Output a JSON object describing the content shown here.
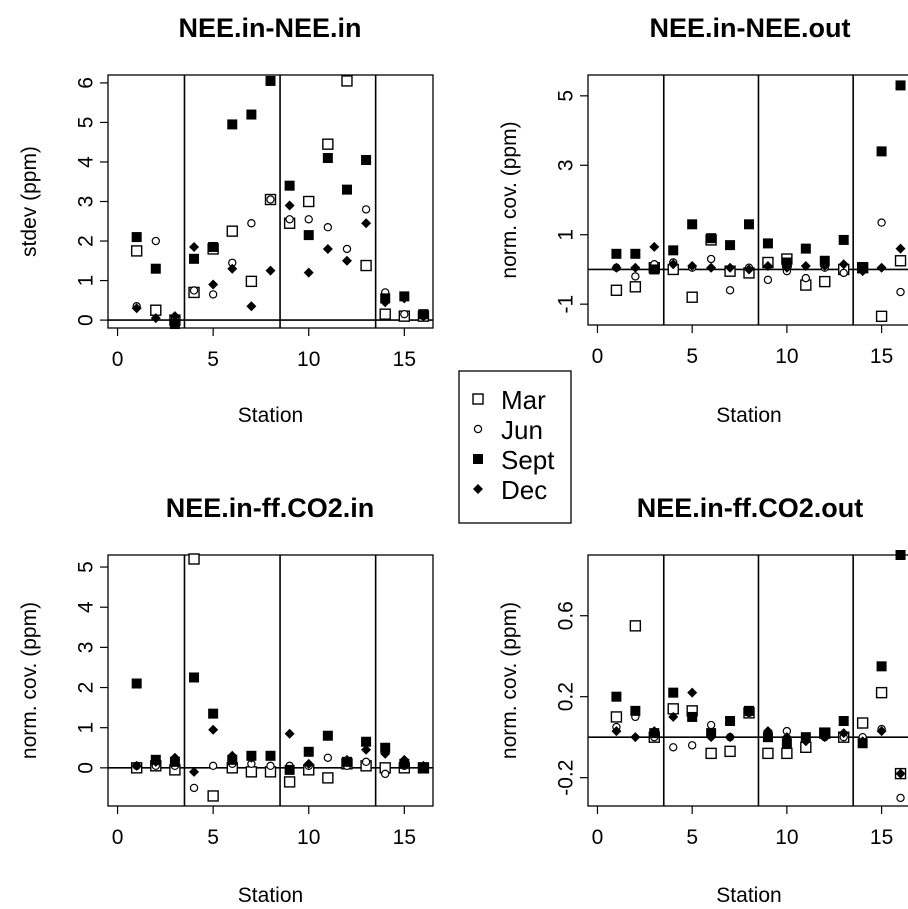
{
  "legend": {
    "entries": [
      {
        "label": "Mar",
        "marker": "open-square"
      },
      {
        "label": "Jun",
        "marker": "open-circle"
      },
      {
        "label": "Sept",
        "marker": "filled-square"
      },
      {
        "label": "Dec",
        "marker": "filled-diamond"
      }
    ]
  },
  "chart_data": [
    {
      "type": "scatter",
      "title": "NEE.in-NEE.in",
      "xlabel": "Station",
      "ylabel": "stdev (ppm)",
      "xlim": [
        -0.5,
        16.5
      ],
      "ylim": [
        -0.2,
        6.2
      ],
      "xticks": [
        0,
        5,
        10,
        15
      ],
      "yticks": [
        0,
        1,
        2,
        3,
        4,
        5,
        6
      ],
      "hline": 0,
      "vlines": [
        3.5,
        8.5,
        13.5
      ],
      "grid": false,
      "series": [
        {
          "name": "Mar",
          "marker": "open-square",
          "x": [
            1,
            2,
            3,
            4,
            5,
            6,
            7,
            8,
            9,
            10,
            11,
            12,
            13,
            14,
            15,
            16
          ],
          "y": [
            1.75,
            0.25,
            0.0,
            0.7,
            1.8,
            2.25,
            0.98,
            3.05,
            2.45,
            3.0,
            4.45,
            6.05,
            1.38,
            0.15,
            0.1,
            0.1
          ]
        },
        {
          "name": "Jun",
          "marker": "open-circle",
          "x": [
            1,
            2,
            3,
            4,
            5,
            6,
            7,
            8,
            9,
            10,
            11,
            12,
            13,
            14,
            15,
            16
          ],
          "y": [
            0.35,
            2.0,
            0.05,
            0.75,
            0.65,
            1.45,
            2.45,
            3.05,
            2.55,
            2.55,
            2.35,
            1.8,
            2.8,
            0.7,
            0.15,
            0.1
          ]
        },
        {
          "name": "Sept",
          "marker": "filled-square",
          "x": [
            1,
            2,
            3,
            4,
            5,
            6,
            7,
            8,
            9,
            10,
            11,
            12,
            13,
            14,
            15,
            16
          ],
          "y": [
            2.1,
            1.3,
            -0.1,
            1.55,
            1.85,
            4.95,
            5.2,
            6.05,
            3.4,
            2.15,
            4.1,
            3.3,
            4.05,
            0.55,
            0.6,
            0.15
          ]
        },
        {
          "name": "Dec",
          "marker": "filled-diamond",
          "x": [
            1,
            2,
            3,
            4,
            5,
            6,
            7,
            8,
            9,
            10,
            11,
            12,
            13,
            14,
            15,
            16
          ],
          "y": [
            0.3,
            0.05,
            0.1,
            1.85,
            0.9,
            1.3,
            0.35,
            1.25,
            2.9,
            1.2,
            1.8,
            1.5,
            2.45,
            0.45,
            0.55,
            0.1
          ]
        }
      ]
    },
    {
      "type": "scatter",
      "title": "NEE.in-NEE.out",
      "xlabel": "Station",
      "ylabel": "norm. cov. (ppm)",
      "xlim": [
        -0.5,
        16.5
      ],
      "ylim": [
        -1.6,
        5.6
      ],
      "xticks": [
        0,
        5,
        10,
        15
      ],
      "yticks": [
        -1,
        1,
        3,
        5
      ],
      "hline": 0,
      "vlines": [
        3.5,
        8.5,
        13.5
      ],
      "grid": false,
      "series": [
        {
          "name": "Mar",
          "marker": "open-square",
          "x": [
            1,
            2,
            3,
            4,
            5,
            6,
            7,
            8,
            9,
            10,
            11,
            12,
            13,
            14,
            15,
            16
          ],
          "y": [
            -0.6,
            -0.5,
            0.05,
            0.0,
            -0.8,
            0.85,
            -0.05,
            -0.1,
            0.2,
            0.3,
            -0.45,
            -0.35,
            0.0,
            0.05,
            -1.35,
            0.25
          ]
        },
        {
          "name": "Jun",
          "marker": "open-circle",
          "x": [
            1,
            2,
            3,
            4,
            5,
            6,
            7,
            8,
            9,
            10,
            11,
            12,
            13,
            14,
            15,
            16
          ],
          "y": [
            0.05,
            -0.2,
            0.15,
            0.2,
            0.05,
            0.3,
            -0.6,
            0.05,
            -0.3,
            -0.05,
            -0.25,
            0.05,
            -0.1,
            0.0,
            1.35,
            -0.65
          ]
        },
        {
          "name": "Sept",
          "marker": "filled-square",
          "x": [
            1,
            2,
            3,
            4,
            5,
            6,
            7,
            8,
            9,
            10,
            11,
            12,
            13,
            14,
            15,
            16
          ],
          "y": [
            0.45,
            0.45,
            0.0,
            0.55,
            1.3,
            0.9,
            0.7,
            1.3,
            0.75,
            0.2,
            0.6,
            0.25,
            0.85,
            0.05,
            3.4,
            5.3
          ]
        },
        {
          "name": "Dec",
          "marker": "filled-diamond",
          "x": [
            1,
            2,
            3,
            4,
            5,
            6,
            7,
            8,
            9,
            10,
            11,
            12,
            13,
            14,
            15,
            16
          ],
          "y": [
            0.05,
            0.05,
            0.65,
            0.15,
            0.1,
            0.05,
            0.05,
            0.0,
            0.1,
            0.05,
            0.1,
            0.1,
            0.15,
            -0.05,
            0.05,
            0.6
          ]
        }
      ]
    },
    {
      "type": "scatter",
      "title": "NEE.in-ff.CO2.in",
      "xlabel": "Station",
      "ylabel": "norm. cov. (ppm)",
      "xlim": [
        -0.5,
        16.5
      ],
      "ylim": [
        -0.95,
        5.3
      ],
      "xticks": [
        0,
        5,
        10,
        15
      ],
      "yticks": [
        0,
        1,
        2,
        3,
        4,
        5
      ],
      "hline": 0,
      "vlines": [
        3.5,
        8.5,
        13.5
      ],
      "grid": false,
      "series": [
        {
          "name": "Mar",
          "marker": "open-square",
          "x": [
            1,
            2,
            3,
            4,
            5,
            6,
            7,
            8,
            9,
            10,
            11,
            12,
            13,
            14,
            15,
            16
          ],
          "y": [
            0.0,
            0.05,
            -0.05,
            5.2,
            -0.7,
            0.0,
            -0.1,
            -0.1,
            -0.35,
            -0.05,
            -0.25,
            0.1,
            0.05,
            0.0,
            0.0,
            0.0
          ]
        },
        {
          "name": "Jun",
          "marker": "open-circle",
          "x": [
            1,
            2,
            3,
            4,
            5,
            6,
            7,
            8,
            9,
            10,
            11,
            12,
            13,
            14,
            15,
            16
          ],
          "y": [
            0.05,
            0.05,
            0.05,
            -0.5,
            0.05,
            0.1,
            0.1,
            0.05,
            0.05,
            0.05,
            0.25,
            0.05,
            0.15,
            -0.15,
            0.05,
            0.0
          ]
        },
        {
          "name": "Sept",
          "marker": "filled-square",
          "x": [
            1,
            2,
            3,
            4,
            5,
            6,
            7,
            8,
            9,
            10,
            11,
            12,
            13,
            14,
            15,
            16
          ],
          "y": [
            2.1,
            0.2,
            0.15,
            2.25,
            1.35,
            0.2,
            0.3,
            0.3,
            -0.05,
            0.4,
            0.8,
            0.15,
            0.65,
            0.5,
            0.1,
            0.0
          ]
        },
        {
          "name": "Dec",
          "marker": "filled-diamond",
          "x": [
            1,
            2,
            3,
            4,
            5,
            6,
            7,
            8,
            9,
            10,
            11,
            12,
            13,
            14,
            15,
            16
          ],
          "y": [
            0.05,
            0.15,
            0.25,
            -0.1,
            0.95,
            0.3,
            0.25,
            0.3,
            0.85,
            0.1,
            0.8,
            0.2,
            0.45,
            0.35,
            0.2,
            0.05
          ]
        }
      ]
    },
    {
      "type": "scatter",
      "title": "NEE.in-ff.CO2.out",
      "xlabel": "Station",
      "ylabel": "norm. cov. (ppm)",
      "xlim": [
        -0.5,
        16.5
      ],
      "ylim": [
        -0.34,
        0.9
      ],
      "xticks": [
        0,
        5,
        10,
        15
      ],
      "yticks": [
        -0.2,
        0.2,
        0.6
      ],
      "hline": 0,
      "vlines": [
        3.5,
        8.5,
        13.5
      ],
      "grid": false,
      "series": [
        {
          "name": "Mar",
          "marker": "open-square",
          "x": [
            1,
            2,
            3,
            4,
            5,
            6,
            7,
            8,
            9,
            10,
            11,
            12,
            13,
            14,
            15,
            16
          ],
          "y": [
            0.1,
            0.55,
            0.0,
            0.14,
            0.13,
            -0.08,
            -0.07,
            0.12,
            -0.08,
            -0.08,
            -0.05,
            0.02,
            0.0,
            0.07,
            0.22,
            -0.18
          ]
        },
        {
          "name": "Jun",
          "marker": "open-circle",
          "x": [
            1,
            2,
            3,
            4,
            5,
            6,
            7,
            8,
            9,
            10,
            11,
            12,
            13,
            14,
            15,
            16
          ],
          "y": [
            0.05,
            0.1,
            0.0,
            -0.05,
            -0.04,
            0.06,
            0.0,
            0.12,
            0.0,
            0.03,
            -0.01,
            0.0,
            0.0,
            0.0,
            0.04,
            -0.3
          ]
        },
        {
          "name": "Sept",
          "marker": "filled-square",
          "x": [
            1,
            2,
            3,
            4,
            5,
            6,
            7,
            8,
            9,
            10,
            11,
            12,
            13,
            14,
            15,
            16
          ],
          "y": [
            0.2,
            0.13,
            0.02,
            0.22,
            0.1,
            0.02,
            0.08,
            0.13,
            0.0,
            -0.03,
            0.0,
            0.02,
            0.08,
            -0.03,
            0.35,
            0.9
          ]
        },
        {
          "name": "Dec",
          "marker": "filled-diamond",
          "x": [
            1,
            2,
            3,
            4,
            5,
            6,
            7,
            8,
            9,
            10,
            11,
            12,
            13,
            14,
            15,
            16
          ],
          "y": [
            0.03,
            0.0,
            0.03,
            0.1,
            0.22,
            0.0,
            0.0,
            0.13,
            0.03,
            0.0,
            -0.02,
            0.0,
            0.02,
            -0.02,
            0.03,
            -0.18
          ]
        }
      ]
    }
  ]
}
